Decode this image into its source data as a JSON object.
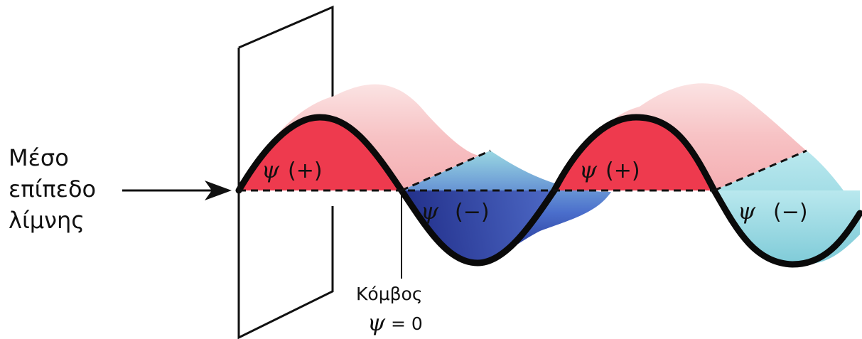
{
  "lake_label": {
    "line1": "Μέσο",
    "line2": "επίπεδο",
    "line3": "λίμνης"
  },
  "lobes": [
    {
      "psi": "ψ",
      "sign": "(+)"
    },
    {
      "psi": "ψ",
      "sign": "(−)"
    },
    {
      "psi": "ψ",
      "sign": "(+)"
    },
    {
      "psi": "ψ",
      "sign": "(−)"
    }
  ],
  "node": {
    "title": "Κόμβος",
    "psi": "ψ",
    "equation": "= 0"
  },
  "colors": {
    "positive": "#ee3a4e",
    "positive_top": "#f8c9c9",
    "negative": "#3a4fb8",
    "negative_light": "#9fdde6",
    "outline": "#0a0a0a"
  }
}
